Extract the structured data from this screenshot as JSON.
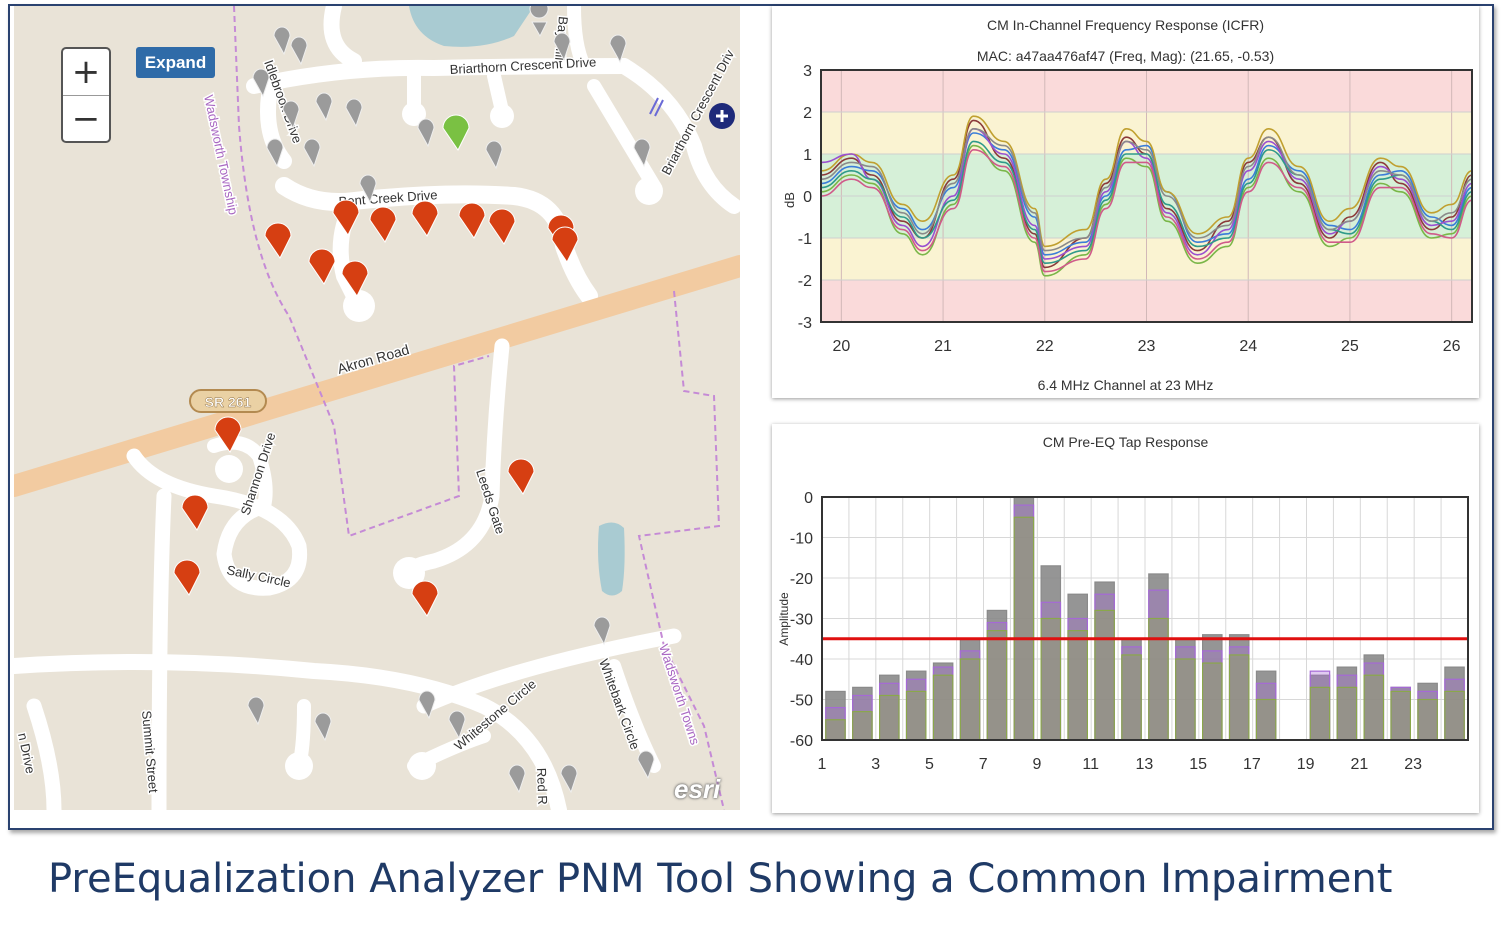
{
  "map": {
    "expand_label": "Expand",
    "zoom_in_label": "+",
    "zoom_out_label": "−",
    "roads": {
      "briarthorn_crescent": "Briarthorn Crescent Drive",
      "briarthorn_crescent_2": "Briarthorn Crescent Driv",
      "bent_creek": "Bent Creek Drive",
      "akron": "Akron Road",
      "shannon": "Shannon Drive",
      "sally": "Sally Circle",
      "leeds": "Leeds Gate",
      "whitestone": "Whitestone Circle",
      "whitebark": "Whitebark Circle",
      "summit": "Summit Street",
      "red": "Red R",
      "idlebrook": "Idlebrook Drive",
      "bay_hill": "Bay Hill",
      "left_drive": "n Drive",
      "township_1": "Wadsworth Township",
      "township_2": "Wadsworth Towns"
    },
    "route_shield": "SR 261",
    "attribution": "esri",
    "colors": {
      "impaired_marker": "#d63f12",
      "ok_marker": "#7ac143",
      "neutral_marker": "#9b9b9b"
    }
  },
  "icfr": {
    "title": "CM In-Channel Frequency Response (ICFR)",
    "subtitle": "MAC: a47aa476af47 (Freq, Mag): (21.65, -0.53)",
    "xlabel": "6.4 MHz Channel at 23 MHz",
    "ylabel": "dB"
  },
  "preeq": {
    "title": "CM Pre-EQ Tap Response",
    "ylabel": "Amplitude"
  },
  "caption": "PreEqualization Analyzer PNM Tool Showing  a Common Impairment",
  "chart_data": [
    {
      "type": "line",
      "title": "CM In-Channel Frequency Response (ICFR)",
      "subtitle": "MAC: a47aa476af47 (Freq, Mag): (21.65, -0.53)",
      "xlabel": "6.4 MHz Channel at 23 MHz",
      "ylabel": "dB",
      "xlim": [
        19.8,
        26.2
      ],
      "ylim": [
        -3,
        3
      ],
      "xticks": [
        20,
        21,
        22,
        23,
        24,
        25,
        26
      ],
      "yticks": [
        3,
        2,
        1,
        0,
        -1,
        -2,
        -3
      ],
      "bands": [
        {
          "from": 2,
          "to": 3,
          "color": "#fadada"
        },
        {
          "from": 1,
          "to": 2,
          "color": "#faf3d2"
        },
        {
          "from": -1,
          "to": 1,
          "color": "#d6f0d8"
        },
        {
          "from": -2,
          "to": -1,
          "color": "#faf3d2"
        },
        {
          "from": -3,
          "to": -2,
          "color": "#fadada"
        }
      ],
      "grid": true,
      "series": [
        {
          "color": "#8b3a3a",
          "x": [
            19.8,
            20.1,
            20.3,
            20.6,
            20.8,
            21.1,
            21.3,
            21.6,
            21.9,
            22.0,
            22.4,
            22.6,
            22.8,
            23.0,
            23.2,
            23.5,
            23.8,
            24.0,
            24.2,
            24.5,
            24.8,
            25.0,
            25.3,
            25.5,
            25.8,
            26.0,
            26.2
          ],
          "y": [
            0.5,
            0.9,
            0.5,
            -0.6,
            -1.0,
            0.4,
            1.8,
            0.9,
            -0.9,
            -1.7,
            -1.0,
            0.3,
            1.4,
            1.0,
            -0.3,
            -1.3,
            -0.6,
            0.8,
            1.4,
            0.3,
            -1.0,
            -0.5,
            0.8,
            0.3,
            -0.8,
            -0.5,
            0.5
          ]
        },
        {
          "color": "#3b7dd8",
          "x": [
            19.8,
            20.1,
            20.3,
            20.6,
            20.8,
            21.1,
            21.3,
            21.6,
            21.9,
            22.0,
            22.4,
            22.6,
            22.8,
            23.0,
            23.2,
            23.5,
            23.8,
            24.0,
            24.2,
            24.5,
            24.8,
            25.0,
            25.3,
            25.5,
            25.8,
            26.0,
            26.2
          ],
          "y": [
            0.3,
            0.7,
            0.6,
            -0.3,
            -0.8,
            0.2,
            1.5,
            1.1,
            -0.5,
            -1.4,
            -1.1,
            0.0,
            1.1,
            1.2,
            0.1,
            -1.1,
            -0.9,
            0.4,
            1.2,
            0.6,
            -0.7,
            -0.8,
            0.5,
            0.6,
            -0.5,
            -0.7,
            0.2
          ]
        },
        {
          "color": "#7ab648",
          "x": [
            19.8,
            20.1,
            20.3,
            20.6,
            20.8,
            21.1,
            21.3,
            21.6,
            21.9,
            22.0,
            22.4,
            22.6,
            22.8,
            23.0,
            23.2,
            23.5,
            23.8,
            24.0,
            24.2,
            24.5,
            24.8,
            25.0,
            25.3,
            25.5,
            25.8,
            26.0,
            26.2
          ],
          "y": [
            0.1,
            0.5,
            0.3,
            -0.9,
            -1.4,
            -0.2,
            1.2,
            0.6,
            -1.1,
            -1.9,
            -1.4,
            -0.2,
            0.9,
            0.7,
            -0.6,
            -1.6,
            -1.2,
            0.2,
            0.9,
            0.1,
            -1.2,
            -1.0,
            0.3,
            0.1,
            -1.0,
            -0.9,
            0.0
          ]
        },
        {
          "color": "#c0a030",
          "x": [
            19.8,
            20.1,
            20.3,
            20.6,
            20.8,
            21.1,
            21.3,
            21.6,
            21.9,
            22.0,
            22.4,
            22.6,
            22.8,
            23.0,
            23.2,
            23.5,
            23.8,
            24.0,
            24.2,
            24.5,
            24.8,
            25.0,
            25.3,
            25.5,
            25.8,
            26.0,
            26.2
          ],
          "y": [
            0.6,
            1.0,
            0.8,
            -0.2,
            -0.6,
            0.5,
            1.9,
            1.3,
            -0.3,
            -1.2,
            -0.8,
            0.4,
            1.6,
            1.3,
            0.1,
            -0.9,
            -0.5,
            0.9,
            1.6,
            0.7,
            -0.6,
            -0.3,
            0.9,
            0.7,
            -0.4,
            -0.2,
            0.6
          ]
        },
        {
          "color": "#9a4fd0",
          "x": [
            19.8,
            20.1,
            20.3,
            20.6,
            20.8,
            21.1,
            21.3,
            21.6,
            21.9,
            22.0,
            22.4,
            22.6,
            22.8,
            23.0,
            23.2,
            23.5,
            23.8,
            24.0,
            24.2,
            24.5,
            24.8,
            25.0,
            25.3,
            25.5,
            25.8,
            26.0,
            26.2
          ],
          "y": [
            0.8,
            1.0,
            0.4,
            -0.7,
            -1.2,
            0.0,
            1.6,
            1.0,
            -0.7,
            -1.5,
            -1.2,
            0.1,
            1.3,
            0.9,
            -0.4,
            -1.4,
            -0.8,
            0.6,
            1.3,
            0.4,
            -0.9,
            -0.6,
            0.7,
            0.4,
            -0.7,
            -0.6,
            0.3
          ]
        },
        {
          "color": "#2f9a8a",
          "x": [
            19.8,
            20.1,
            20.3,
            20.6,
            20.8,
            21.1,
            21.3,
            21.6,
            21.9,
            22.0,
            22.4,
            22.6,
            22.8,
            23.0,
            23.2,
            23.5,
            23.8,
            24.0,
            24.2,
            24.5,
            24.8,
            25.0,
            25.3,
            25.5,
            25.8,
            26.0,
            26.2
          ],
          "y": [
            0.2,
            0.6,
            0.4,
            -0.5,
            -1.0,
            -0.1,
            1.3,
            0.8,
            -0.8,
            -1.6,
            -1.3,
            -0.1,
            1.0,
            1.0,
            -0.2,
            -1.2,
            -1.0,
            0.3,
            1.1,
            0.5,
            -0.8,
            -0.9,
            0.4,
            0.5,
            -0.6,
            -0.8,
            0.1
          ]
        },
        {
          "color": "#8a8a8a",
          "x": [
            19.8,
            20.1,
            20.3,
            20.6,
            20.8,
            21.1,
            21.3,
            21.6,
            21.9,
            22.0,
            22.4,
            22.6,
            22.8,
            23.0,
            23.2,
            23.5,
            23.8,
            24.0,
            24.2,
            24.5,
            24.8,
            25.0,
            25.3,
            25.5,
            25.8,
            26.0,
            26.2
          ],
          "y": [
            0.4,
            0.8,
            0.7,
            -0.4,
            -0.9,
            0.3,
            1.6,
            1.2,
            -0.4,
            -1.3,
            -1.0,
            0.2,
            1.3,
            1.1,
            0.0,
            -1.0,
            -0.7,
            0.7,
            1.4,
            0.5,
            -0.8,
            -0.6,
            0.6,
            0.5,
            -0.6,
            -0.4,
            0.4
          ]
        },
        {
          "color": "#d05a8a",
          "x": [
            19.8,
            20.1,
            20.3,
            20.6,
            20.8,
            21.1,
            21.3,
            21.6,
            21.9,
            22.0,
            22.4,
            22.6,
            22.8,
            23.0,
            23.2,
            23.5,
            23.8,
            24.0,
            24.2,
            24.5,
            24.8,
            25.0,
            25.3,
            25.5,
            25.8,
            26.0,
            26.2
          ],
          "y": [
            0.0,
            0.4,
            0.2,
            -0.8,
            -1.3,
            -0.3,
            1.1,
            0.7,
            -1.0,
            -1.8,
            -1.5,
            -0.3,
            0.8,
            0.8,
            -0.5,
            -1.5,
            -1.1,
            0.1,
            0.8,
            0.2,
            -1.1,
            -1.1,
            0.2,
            0.2,
            -0.9,
            -1.0,
            -0.1
          ]
        }
      ]
    },
    {
      "type": "bar",
      "title": "CM Pre-EQ Tap Response",
      "xlabel": "",
      "ylabel": "Amplitude",
      "ylim": [
        -60,
        0
      ],
      "yticks": [
        0,
        -10,
        -20,
        -30,
        -40,
        -50,
        -60
      ],
      "xticks": [
        1,
        3,
        5,
        7,
        9,
        11,
        13,
        15,
        17,
        19,
        21,
        23
      ],
      "categories": [
        1,
        2,
        3,
        4,
        5,
        6,
        7,
        8,
        9,
        10,
        11,
        12,
        13,
        14,
        15,
        16,
        17,
        19,
        20,
        21,
        22,
        23,
        24
      ],
      "series": [
        {
          "values": [
            -48,
            -47,
            -44,
            -43,
            -41,
            -35,
            -28,
            0,
            -17,
            -24,
            -21,
            -35,
            -19,
            -35,
            -34,
            -34,
            -43,
            -44,
            -42,
            -39,
            -47,
            -46,
            -42
          ],
          "color": "#8a8a8a"
        },
        {
          "values": [
            -52,
            -49,
            -46,
            -45,
            -42,
            -38,
            -31,
            -2,
            -26,
            -30,
            -24,
            -37,
            -23,
            -37,
            -38,
            -37,
            -46,
            -43,
            -44,
            -41,
            -47,
            -48,
            -45
          ],
          "color": "#a569d6"
        },
        {
          "values": [
            -55,
            -53,
            -49,
            -48,
            -44,
            -40,
            -33,
            -5,
            -30,
            -33,
            -28,
            -39,
            -30,
            -40,
            -41,
            -39,
            -50,
            -47,
            -47,
            -44,
            -48,
            -50,
            -48
          ],
          "color": "#8aa84a"
        }
      ],
      "threshold": {
        "value": -35,
        "color": "#e01010"
      }
    }
  ]
}
